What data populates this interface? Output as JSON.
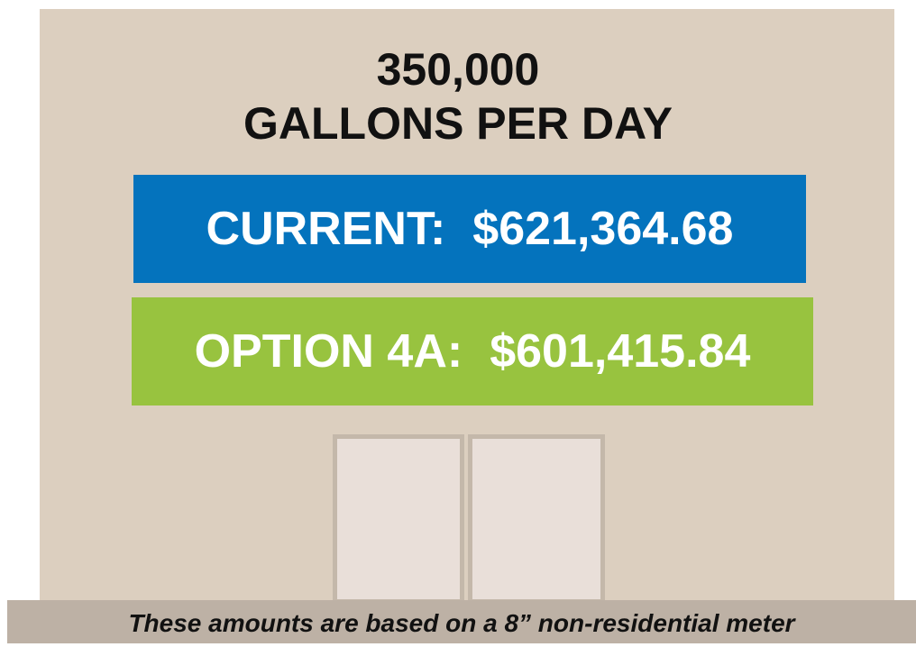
{
  "header": {
    "line1": "350,000",
    "line2": "GALLONS PER DAY"
  },
  "signs": [
    {
      "label": "CURRENT:",
      "amount": "$621,364.68"
    },
    {
      "label": "OPTION 4A:",
      "amount": "$601,415.84"
    }
  ],
  "footer": "These amounts are based on a 8” non-residential meter"
}
